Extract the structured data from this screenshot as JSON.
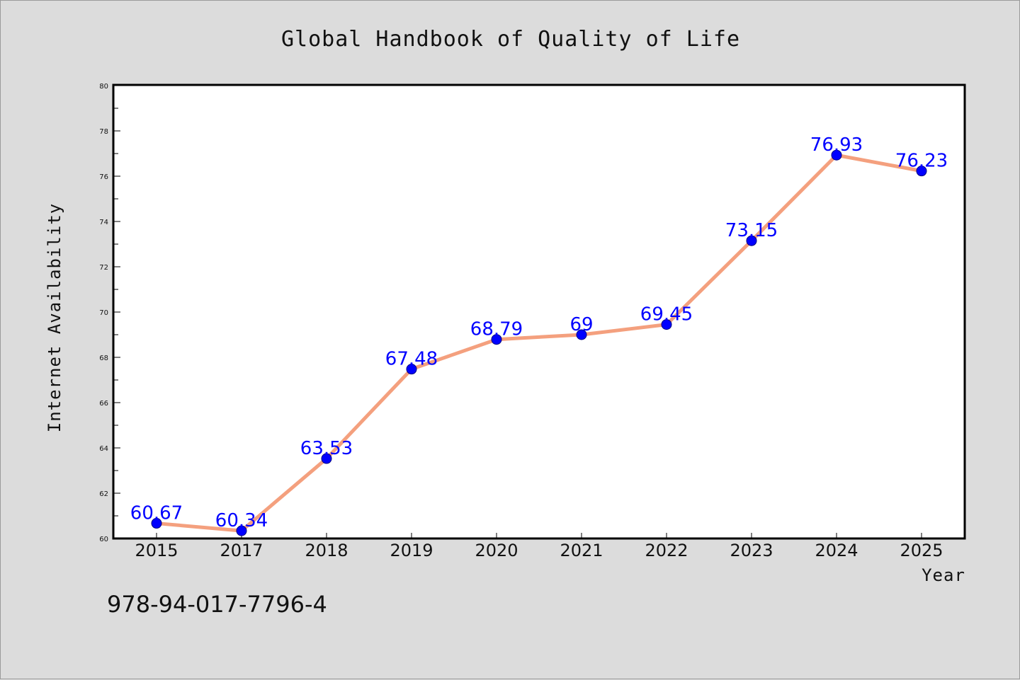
{
  "chart_data": {
    "type": "line",
    "title": "Global Handbook of Quality of Life",
    "xlabel": "Year",
    "ylabel": "Internet Availability",
    "categories": [
      "2015",
      "2017",
      "2018",
      "2019",
      "2020",
      "2021",
      "2022",
      "2023",
      "2024",
      "2025"
    ],
    "series": [
      {
        "values": [
          60.67,
          60.34,
          63.53,
          67.48,
          68.79,
          69,
          69.45,
          73.15,
          76.93,
          76.23
        ],
        "labels": [
          "60.67",
          "60.34",
          "63.53",
          "67.48",
          "68.79",
          "69",
          "69.45",
          "73.15",
          "76.93",
          "76.23"
        ]
      }
    ],
    "ylim": [
      60,
      80
    ],
    "yticks": [
      "60",
      "62",
      "64",
      "66",
      "68",
      "70",
      "72",
      "74",
      "76",
      "78",
      "80"
    ],
    "grid": false,
    "legend": "none",
    "colors": {
      "line": "#f4a07e",
      "marker": "#0000ff",
      "data_label": "#0000ff",
      "plot_bg": "#ffffff",
      "page_bg": "#dcdcdc"
    }
  },
  "footer": {
    "isbn": "978-94-017-7796-4"
  }
}
